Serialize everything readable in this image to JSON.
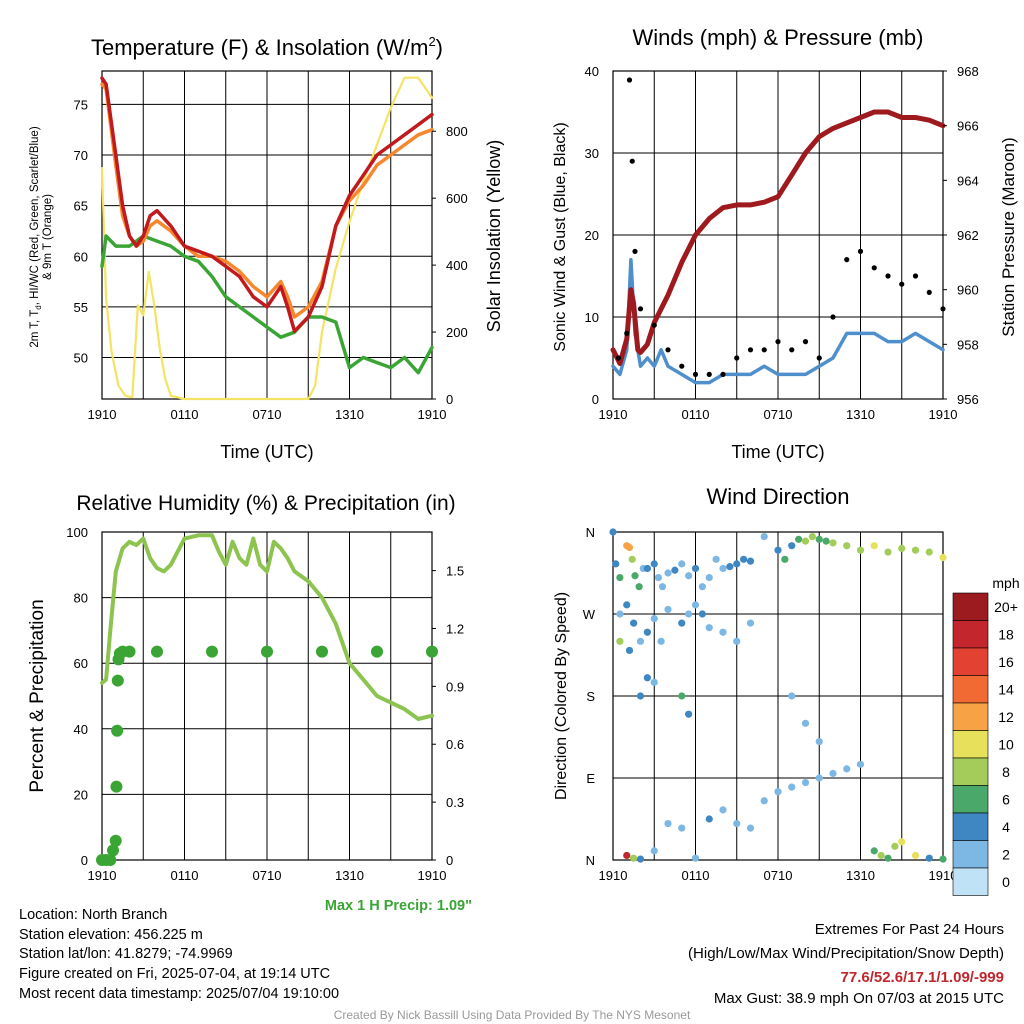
{
  "chart_data": [
    {
      "type": "line",
      "title": "Temperature (F) & Insolation (W/m²)",
      "xlabel": "Time (UTC)",
      "ylabel": "2m T, T_d, HI/WC (Red, Green, Scarlet/Blue) & 9m T (Orange)",
      "y2label": "Solar Insolation (Yellow)",
      "x_ticks": [
        "1910",
        "0110",
        "0710",
        "1310",
        "1910"
      ],
      "y_ticks": [
        "50",
        "55",
        "60",
        "65",
        "70",
        "75"
      ],
      "y2_ticks": [
        "0",
        "200",
        "400",
        "600",
        "800"
      ],
      "ylim": [
        45.9,
        78.3
      ],
      "y2lim": [
        0,
        980
      ],
      "grid": true,
      "series": [
        {
          "name": "2m T (Red)",
          "color": "#c01a1e",
          "x": [
            0,
            0.3,
            1,
            1.5,
            2,
            2.5,
            3,
            3.5,
            4,
            5,
            6,
            7,
            8,
            9,
            10,
            11,
            12,
            13,
            13.5,
            14,
            15,
            16,
            17,
            18,
            19,
            20,
            21,
            22,
            23,
            24
          ],
          "y": [
            77.6,
            77,
            70,
            65,
            62,
            61,
            62,
            64,
            64.5,
            63,
            61,
            60.5,
            60,
            59,
            58,
            56,
            55,
            57,
            55,
            52.6,
            54,
            57,
            63,
            66,
            68,
            70,
            71,
            72,
            73,
            74
          ]
        },
        {
          "name": "9m T (Orange)",
          "color": "#f5882f",
          "x": [
            0,
            0.3,
            1,
            1.5,
            2,
            2.5,
            3,
            3.5,
            4,
            5,
            6,
            7,
            8,
            9,
            10,
            11,
            12,
            13,
            13.5,
            14,
            15,
            16,
            17,
            18,
            19,
            20,
            21,
            22,
            23,
            24
          ],
          "y": [
            77,
            76.5,
            69,
            64,
            62,
            61,
            61.5,
            63,
            63.5,
            62.5,
            61,
            60,
            60,
            59.5,
            58.5,
            57,
            56,
            57.5,
            56,
            54,
            55,
            57.5,
            63,
            65.5,
            67,
            69,
            70,
            71,
            72,
            72.5
          ]
        },
        {
          "name": "Td (Green)",
          "color": "#3aa535",
          "x": [
            0,
            0.3,
            1,
            2,
            3,
            4,
            5,
            6,
            7,
            8,
            9,
            10,
            11,
            12,
            13,
            14,
            15,
            16,
            17,
            18,
            19,
            20,
            21,
            22,
            23,
            24
          ],
          "y": [
            59,
            62,
            61,
            61,
            62,
            61.5,
            61,
            60,
            59.5,
            58,
            56,
            55,
            54,
            53,
            52,
            52.5,
            54,
            54,
            53.5,
            49,
            50,
            49.5,
            49,
            50,
            48.5,
            51
          ]
        },
        {
          "name": "Solar Insolation (Yellow)",
          "axis": "y2",
          "color": "#f5e364",
          "x": [
            0,
            0.3,
            0.7,
            1.2,
            1.7,
            2.2,
            2.6,
            3,
            3.4,
            3.8,
            4.2,
            4.6,
            5,
            6,
            7,
            8,
            9,
            10,
            11,
            12,
            13,
            14,
            15,
            15.5,
            16,
            17,
            18,
            19,
            20,
            21,
            22,
            23,
            24
          ],
          "y": [
            690,
            300,
            140,
            40,
            10,
            5,
            280,
            250,
            380,
            280,
            150,
            60,
            10,
            0,
            0,
            0,
            0,
            0,
            0,
            0,
            0,
            0,
            0,
            40,
            200,
            390,
            530,
            650,
            760,
            870,
            960,
            960,
            900
          ]
        }
      ]
    },
    {
      "type": "line",
      "title": "Winds (mph) & Pressure (mb)",
      "xlabel": "Time (UTC)",
      "ylabel": "Sonic Wind & Gust (Blue, Black)",
      "y2label": "Station Pressure (Maroon)",
      "x_ticks": [
        "1910",
        "0110",
        "0710",
        "1310",
        "1910"
      ],
      "y_ticks": [
        "0",
        "10",
        "20",
        "30",
        "40"
      ],
      "y2_ticks": [
        "956",
        "958",
        "960",
        "962",
        "964",
        "966",
        "968"
      ],
      "ylim": [
        0,
        40
      ],
      "y2lim": [
        956,
        968
      ],
      "grid": true,
      "series": [
        {
          "name": "Sonic Wind (Blue)",
          "color": "#4f8fcc",
          "x": [
            0,
            0.5,
            1,
            1.3,
            1.6,
            2,
            2.5,
            3,
            3.5,
            4,
            5,
            6,
            7,
            8,
            9,
            10,
            11,
            12,
            13,
            14,
            15,
            16,
            17,
            18,
            19,
            20,
            21,
            22,
            23,
            24
          ],
          "y": [
            4,
            3,
            6,
            17,
            8,
            4,
            5,
            4,
            6,
            4,
            3,
            2,
            2,
            3,
            3,
            3,
            4,
            3,
            3,
            3,
            4,
            5,
            8,
            8,
            8,
            7,
            7,
            8,
            7,
            6
          ]
        },
        {
          "name": "Gust (Black)",
          "color": "#000000",
          "marker": "dot",
          "x": [
            0.4,
            1,
            1.2,
            1.4,
            1.6,
            2,
            3,
            4,
            5,
            6,
            7,
            8,
            9,
            10,
            11,
            12,
            13,
            14,
            15,
            16,
            17,
            18,
            19,
            20,
            21,
            22,
            23,
            24
          ],
          "y": [
            5,
            8,
            38.9,
            29,
            18,
            11,
            9,
            6,
            4,
            3,
            3,
            3,
            5,
            6,
            6,
            7,
            6,
            7,
            5,
            10,
            17,
            18,
            16,
            15,
            14,
            15,
            13,
            11
          ]
        },
        {
          "name": "Station Pressure (Maroon)",
          "axis": "y2",
          "color": "#9e1a1e",
          "x": [
            0,
            0.5,
            1,
            1.3,
            1.5,
            1.8,
            2,
            2.5,
            3,
            4,
            5,
            6,
            7,
            8,
            9,
            10,
            11,
            12,
            13,
            14,
            15,
            16,
            17,
            18,
            19,
            20,
            21,
            22,
            23,
            24
          ],
          "y": [
            957.8,
            957.3,
            958.2,
            960,
            959.5,
            957.8,
            957.7,
            958,
            958.8,
            959.8,
            961,
            962,
            962.6,
            963,
            963.1,
            963.1,
            963.2,
            963.4,
            964.2,
            965,
            965.6,
            965.9,
            966.1,
            966.3,
            966.5,
            966.5,
            966.3,
            966.3,
            966.2,
            966
          ]
        }
      ]
    },
    {
      "type": "line",
      "title": "Relative Humidity (%) & Precipitation (in)",
      "ylabel": "Percent & Precipitation",
      "x_ticks": [
        "1910",
        "0110",
        "0710",
        "1310",
        "1910"
      ],
      "y_ticks": [
        "0",
        "20",
        "40",
        "60",
        "80",
        "100"
      ],
      "y2_ticks": [
        "0.0",
        "0.3",
        "0.6",
        "0.9",
        "1.2",
        "1.5"
      ],
      "ylim": [
        0,
        100
      ],
      "y2lim": [
        0,
        1.7
      ],
      "grid": true,
      "annotation": "Max 1 H Precip: 1.09\"",
      "series": [
        {
          "name": "Relative Humidity",
          "color": "#8dc44f",
          "x": [
            0,
            0.3,
            0.6,
            1,
            1.5,
            2,
            2.5,
            3,
            3.5,
            4,
            4.5,
            5,
            6,
            7,
            8,
            8.5,
            9,
            9.5,
            10,
            10.5,
            11,
            11.5,
            12,
            12.5,
            13,
            13.5,
            14,
            15,
            16,
            17,
            18,
            19,
            20,
            21,
            22,
            23,
            24
          ],
          "y": [
            54,
            55,
            70,
            88,
            95,
            97,
            96,
            98,
            92,
            89,
            88,
            90,
            98,
            99,
            99,
            94,
            90,
            97,
            92,
            90,
            98,
            90,
            88,
            97,
            95,
            92,
            88,
            85,
            80,
            72,
            60,
            55,
            50,
            48,
            46,
            43,
            44
          ]
        },
        {
          "name": "Precipitation",
          "axis": "y2",
          "color": "#3aa535",
          "marker": "dot",
          "x": [
            0,
            0.3,
            0.6,
            0.8,
            1,
            1.05,
            1.1,
            1.15,
            1.2,
            1.3,
            1.5,
            2,
            4,
            8,
            12,
            16,
            20,
            24
          ],
          "y": [
            0,
            0,
            0,
            0.05,
            0.1,
            0.38,
            0.67,
            0.93,
            1.04,
            1.07,
            1.08,
            1.08,
            1.08,
            1.08,
            1.08,
            1.08,
            1.08,
            1.08
          ]
        }
      ]
    },
    {
      "type": "scatter",
      "title": "Wind Direction",
      "ylabel": "Direction (Colored By Speed)",
      "x_ticks": [
        "1910",
        "0110",
        "0710",
        "1310",
        "1910"
      ],
      "y_ticks": [
        "N",
        "E",
        "S",
        "W",
        "N"
      ],
      "ylim": [
        0,
        360
      ],
      "colorbar_title": "mph",
      "colorbar_labels": [
        "20+",
        "18",
        "16",
        "14",
        "12",
        "10",
        "8",
        "6",
        "4",
        "2",
        "0"
      ],
      "colorbar_colors": [
        "#9b1b1e",
        "#c4262e",
        "#e34232",
        "#f26a33",
        "#f7a345",
        "#e6e05a",
        "#a3cc5a",
        "#4aa86b",
        "#3f87c2",
        "#7db7e3",
        "#bfe2f7"
      ],
      "points_t_deg_speed": [
        [
          0,
          360,
          3
        ],
        [
          0.2,
          325,
          4
        ],
        [
          0.5,
          310,
          5
        ],
        [
          1,
          345,
          11
        ],
        [
          1.2,
          343,
          12
        ],
        [
          1.4,
          330,
          7
        ],
        [
          1.6,
          312,
          6
        ],
        [
          1.9,
          300,
          5
        ],
        [
          2.2,
          320,
          2
        ],
        [
          2.5,
          320,
          3
        ],
        [
          3,
          325,
          3
        ],
        [
          3.3,
          310,
          2
        ],
        [
          3.6,
          300,
          2
        ],
        [
          4,
          315,
          2
        ],
        [
          4.5,
          318,
          3
        ],
        [
          5,
          325,
          1
        ],
        [
          5.5,
          312,
          2
        ],
        [
          6,
          320,
          3
        ],
        [
          6.5,
          300,
          1
        ],
        [
          7,
          310,
          2
        ],
        [
          7.5,
          330,
          1
        ],
        [
          8,
          320,
          1
        ],
        [
          8.5,
          322,
          4
        ],
        [
          9,
          325,
          3
        ],
        [
          9.5,
          330,
          4
        ],
        [
          10,
          328,
          4
        ],
        [
          11,
          355,
          2
        ],
        [
          12,
          340,
          3
        ],
        [
          12.5,
          330,
          5
        ],
        [
          13,
          345,
          4
        ],
        [
          13.5,
          352,
          5
        ],
        [
          14,
          350,
          7
        ],
        [
          14.5,
          355,
          7
        ],
        [
          15,
          352,
          6
        ],
        [
          15.5,
          350,
          6
        ],
        [
          16,
          348,
          8
        ],
        [
          17,
          345,
          7
        ],
        [
          18,
          340,
          8
        ],
        [
          19,
          345,
          9
        ],
        [
          20,
          338,
          8
        ],
        [
          21,
          342,
          7
        ],
        [
          22,
          340,
          8
        ],
        [
          23,
          338,
          7
        ],
        [
          24,
          332,
          9
        ],
        [
          0.5,
          270,
          2
        ],
        [
          1,
          280,
          4
        ],
        [
          1.5,
          260,
          3
        ],
        [
          2,
          240,
          2
        ],
        [
          2.5,
          250,
          3
        ],
        [
          3,
          265,
          2
        ],
        [
          3.5,
          240,
          2
        ],
        [
          4,
          275,
          2
        ],
        [
          5,
          260,
          3
        ],
        [
          5.5,
          270,
          2
        ],
        [
          6,
          280,
          2
        ],
        [
          6.5,
          270,
          3
        ],
        [
          7,
          255,
          2
        ],
        [
          8,
          250,
          1
        ],
        [
          9,
          240,
          1
        ],
        [
          10,
          260,
          2
        ],
        [
          0.5,
          240,
          7
        ],
        [
          1.2,
          230,
          4
        ],
        [
          2,
          180,
          4
        ],
        [
          2.5,
          200,
          3
        ],
        [
          3,
          195,
          2
        ],
        [
          5,
          180,
          5
        ],
        [
          5.5,
          160,
          3
        ],
        [
          13,
          180,
          1
        ],
        [
          14,
          150,
          1
        ],
        [
          15,
          130,
          2
        ],
        [
          1,
          5,
          18
        ],
        [
          1.5,
          2,
          8
        ],
        [
          2,
          1,
          4
        ],
        [
          3,
          10,
          2
        ],
        [
          4,
          40,
          2
        ],
        [
          5,
          35,
          1
        ],
        [
          6,
          2,
          1
        ],
        [
          7,
          45,
          3
        ],
        [
          8,
          55,
          1
        ],
        [
          9,
          40,
          2
        ],
        [
          10,
          35,
          1
        ],
        [
          11,
          65,
          2
        ],
        [
          12,
          75,
          1
        ],
        [
          13,
          80,
          2
        ],
        [
          14,
          85,
          1
        ],
        [
          15,
          90,
          2
        ],
        [
          16,
          95,
          1
        ],
        [
          17,
          100,
          1
        ],
        [
          18,
          105,
          1
        ],
        [
          19,
          10,
          5
        ],
        [
          19.5,
          5,
          7
        ],
        [
          20,
          2,
          6
        ],
        [
          20.5,
          15,
          7
        ],
        [
          21,
          20,
          10
        ],
        [
          22,
          5,
          9
        ],
        [
          23,
          2,
          3
        ],
        [
          24,
          1,
          6
        ]
      ]
    }
  ],
  "info": {
    "location": "Location: North Branch",
    "elevation": "Station elevation: 456.225 m",
    "latlon": "Station lat/lon: 41.8279; -74.9969",
    "created": "Figure created on Fri, 2025-07-04, at 19:14 UTC",
    "recent": "Most recent data timestamp: 2025/07/04 19:10:00"
  },
  "extremes": {
    "title": "Extremes For Past 24 Hours",
    "subtitle": "(High/Low/Max Wind/Precipitation/Snow Depth)",
    "values": "77.6/52.6/17.1/1.09/-999",
    "gust": "Max Gust: 38.9 mph On 07/03 at 2015 UTC",
    "value_color": "#c0272d"
  },
  "credit": "Created By Nick Bassill Using Data Provided By The NYS Mesonet"
}
